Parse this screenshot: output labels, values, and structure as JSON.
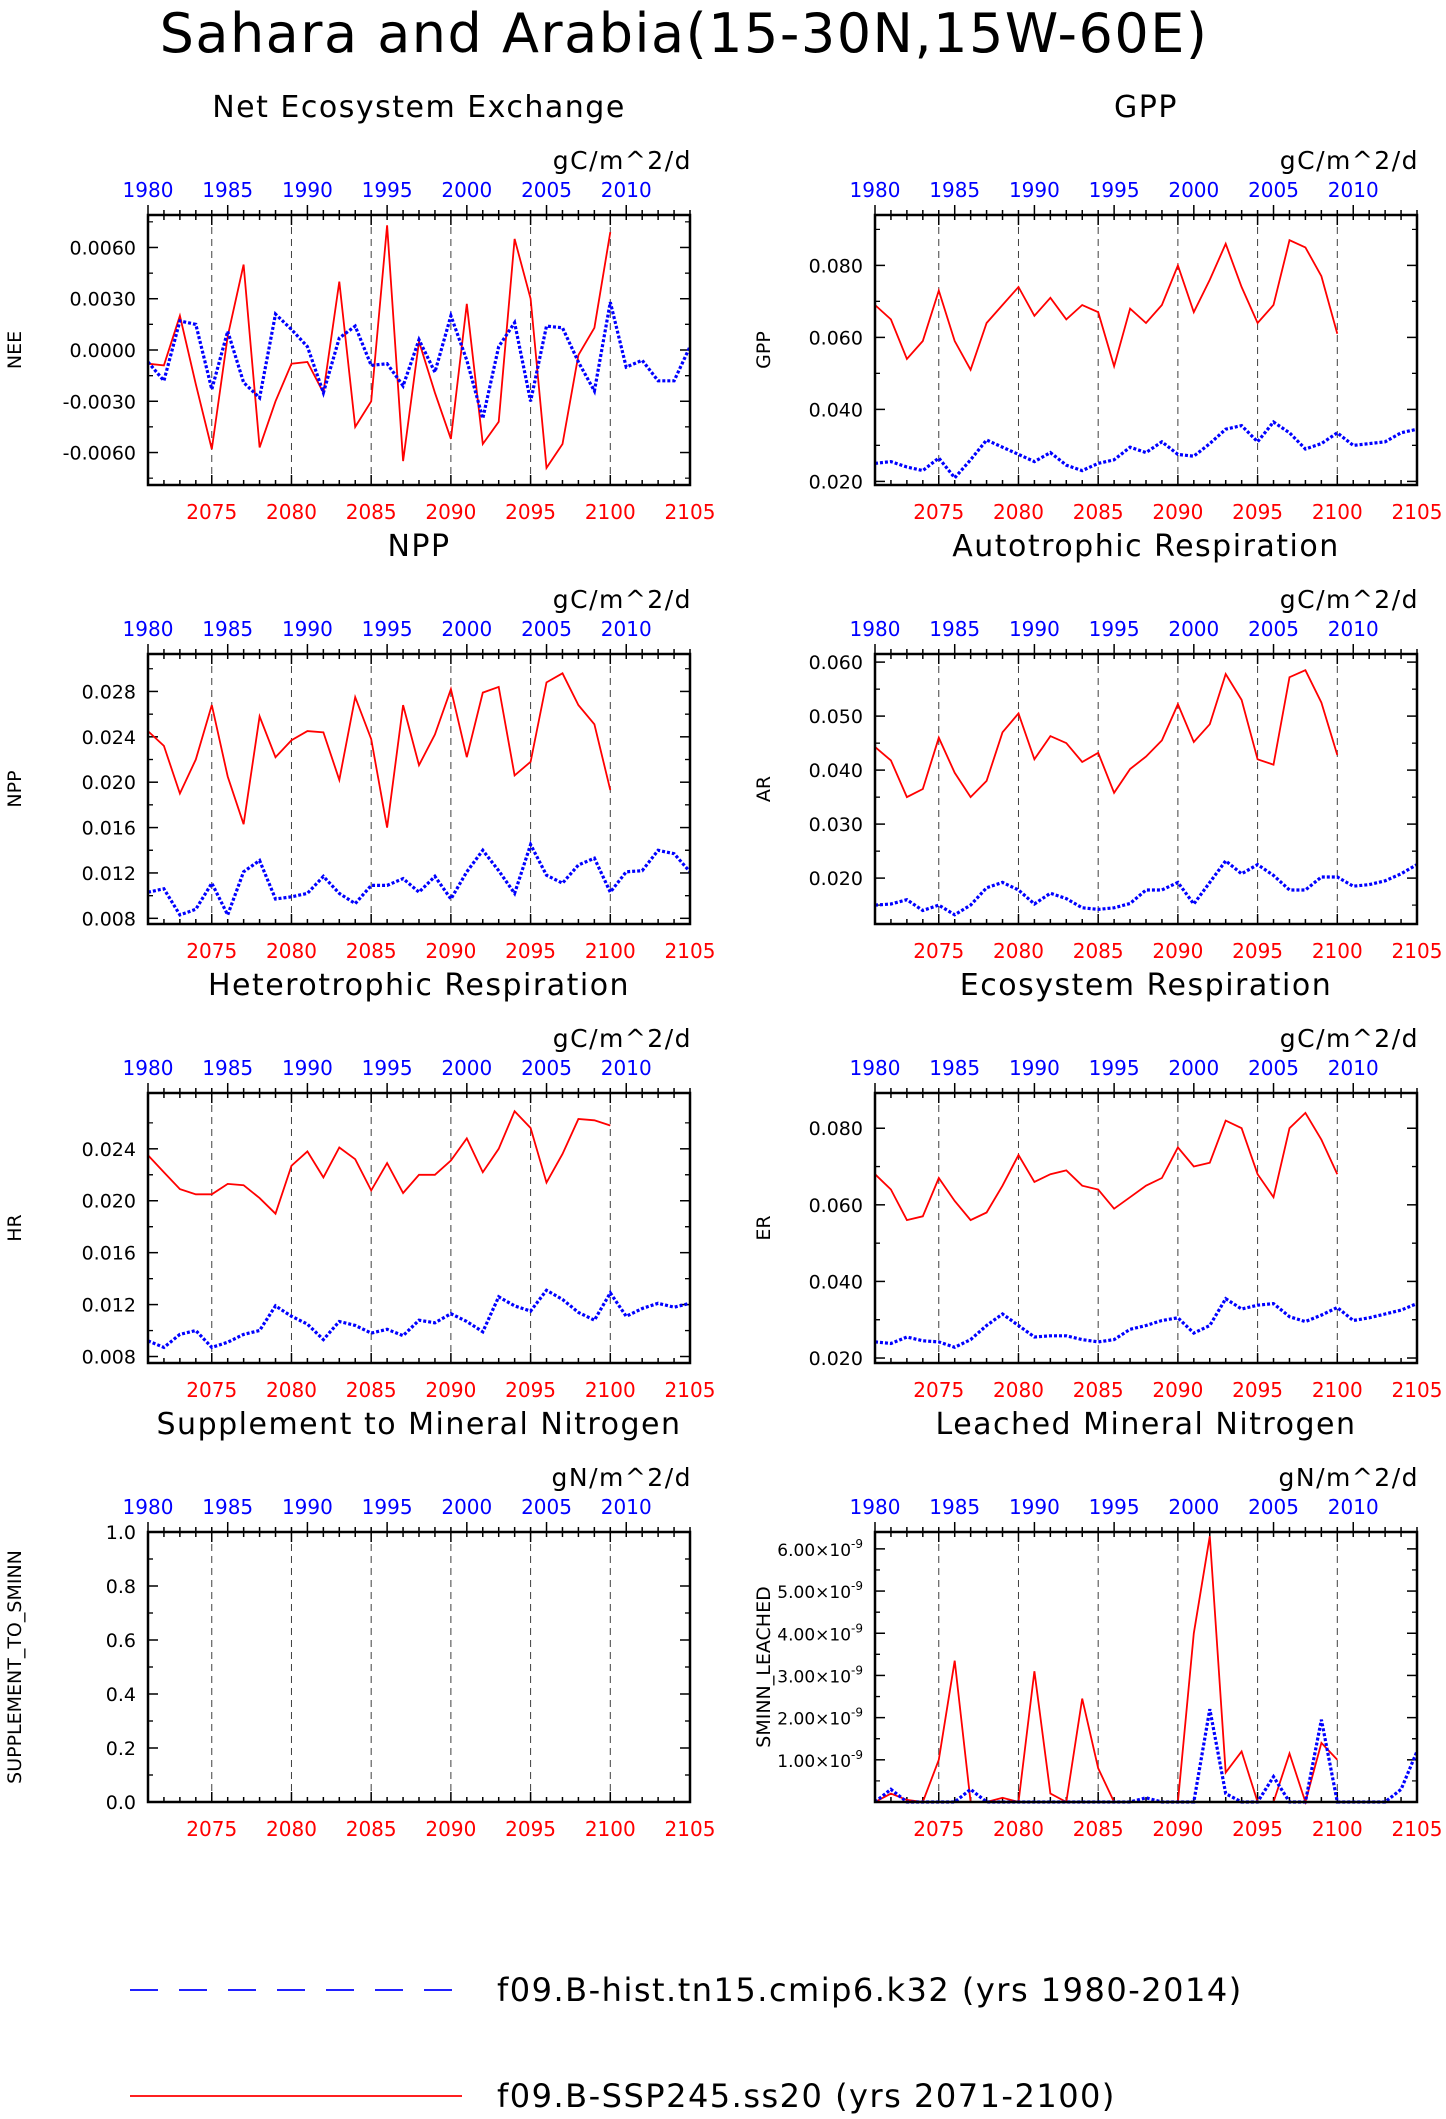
{
  "page_title": "Sahara and Arabia(15-30N,15W-60E)",
  "x_axes": {
    "top_ticks": [
      1980,
      1985,
      1990,
      1995,
      2000,
      2005,
      2010
    ],
    "top_range": [
      1980,
      2014
    ],
    "bottom_ticks": [
      2075,
      2080,
      2085,
      2090,
      2095,
      2100,
      2105
    ],
    "bottom_range": [
      2071,
      2105
    ],
    "top_color": "#0000ff",
    "bottom_color": "#ff0000",
    "dashed_gridlines_at_bottom_years": [
      2075,
      2080,
      2085,
      2090,
      2095,
      2100
    ]
  },
  "legend": {
    "items": [
      {
        "label": "f09.B-hist.tn15.cmip6.k32 (yrs 1980-2014)",
        "color": "#0000ff",
        "style": "dashed"
      },
      {
        "label": "f09.B-SSP245.ss20 (yrs 2071-2100)",
        "color": "#ff0000",
        "style": "solid"
      }
    ]
  },
  "chart_data": [
    {
      "type": "line",
      "title": "Net Ecosystem Exchange",
      "units": "gC/m^2/d",
      "ylabel": "NEE",
      "ylim": [
        -0.0079,
        0.0079
      ],
      "yticks": [
        {
          "v": 0.006,
          "label": "0.0060"
        },
        {
          "v": 0.003,
          "label": "0.0030"
        },
        {
          "v": 0.0,
          "label": "0.0000"
        },
        {
          "v": -0.003,
          "label": "-0.0030"
        },
        {
          "v": -0.006,
          "label": "-0.0060"
        }
      ],
      "series": [
        {
          "color": "#ff0000",
          "x_start": 2071,
          "values": [
            -0.0008,
            -0.0009,
            0.002,
            -0.002,
            -0.0058,
            0.0008,
            0.005,
            -0.0057,
            -0.003,
            -0.0008,
            -0.0007,
            -0.0025,
            0.004,
            -0.0045,
            -0.003,
            0.0073,
            -0.0065,
            0.0005,
            -0.0025,
            -0.0052,
            0.0027,
            -0.0055,
            -0.0042,
            0.0065,
            0.003,
            -0.0069,
            -0.0055,
            -0.0003,
            0.0013,
            0.0069
          ]
        },
        {
          "color": "#0000ff",
          "x_start": 1980,
          "dashed": true,
          "values": [
            -0.0007,
            -0.0018,
            0.0017,
            0.0015,
            -0.0023,
            0.0011,
            -0.0019,
            -0.0028,
            0.0021,
            0.0012,
            0.0002,
            -0.0025,
            0.0007,
            0.0014,
            -0.0009,
            -0.0008,
            -0.0021,
            0.0006,
            -0.0013,
            0.002,
            -0.0006,
            -0.004,
            0.0002,
            0.0016,
            -0.003,
            0.0014,
            0.0013,
            -0.0007,
            -0.0024,
            0.0028,
            -0.001,
            -0.0006,
            -0.0018,
            -0.0018,
            0.0002
          ]
        }
      ]
    },
    {
      "type": "line",
      "title": "GPP",
      "units": "gC/m^2/d",
      "ylabel": "GPP",
      "ylim": [
        0.019,
        0.094
      ],
      "yticks": [
        {
          "v": 0.08,
          "label": "0.080"
        },
        {
          "v": 0.06,
          "label": "0.060"
        },
        {
          "v": 0.04,
          "label": "0.040"
        },
        {
          "v": 0.02,
          "label": "0.020"
        }
      ],
      "series": [
        {
          "color": "#ff0000",
          "x_start": 2071,
          "values": [
            0.069,
            0.065,
            0.054,
            0.059,
            0.073,
            0.059,
            0.051,
            0.064,
            0.069,
            0.074,
            0.066,
            0.071,
            0.065,
            0.069,
            0.067,
            0.052,
            0.068,
            0.064,
            0.069,
            0.08,
            0.067,
            0.076,
            0.086,
            0.074,
            0.064,
            0.069,
            0.087,
            0.085,
            0.077,
            0.061
          ]
        },
        {
          "color": "#0000ff",
          "x_start": 1980,
          "dashed": true,
          "values": [
            0.025,
            0.0255,
            0.024,
            0.023,
            0.0265,
            0.021,
            0.026,
            0.0315,
            0.0295,
            0.0275,
            0.0255,
            0.028,
            0.0245,
            0.023,
            0.025,
            0.026,
            0.0295,
            0.028,
            0.031,
            0.0275,
            0.027,
            0.0305,
            0.0345,
            0.0355,
            0.031,
            0.0365,
            0.0335,
            0.029,
            0.0305,
            0.0335,
            0.03,
            0.0305,
            0.031,
            0.0335,
            0.0345
          ]
        }
      ]
    },
    {
      "type": "line",
      "title": "NPP",
      "units": "gC/m^2/d",
      "ylabel": "NPP",
      "ylim": [
        0.0075,
        0.0313
      ],
      "yticks": [
        {
          "v": 0.028,
          "label": "0.028"
        },
        {
          "v": 0.024,
          "label": "0.024"
        },
        {
          "v": 0.02,
          "label": "0.020"
        },
        {
          "v": 0.016,
          "label": "0.016"
        },
        {
          "v": 0.012,
          "label": "0.012"
        },
        {
          "v": 0.008,
          "label": "0.008"
        }
      ],
      "series": [
        {
          "color": "#ff0000",
          "x_start": 2071,
          "values": [
            0.0245,
            0.0232,
            0.019,
            0.022,
            0.0268,
            0.0205,
            0.0163,
            0.0258,
            0.0222,
            0.0237,
            0.0245,
            0.0244,
            0.0202,
            0.0275,
            0.0238,
            0.016,
            0.0268,
            0.0215,
            0.0242,
            0.0282,
            0.0222,
            0.0279,
            0.0284,
            0.0206,
            0.0218,
            0.0288,
            0.0296,
            0.0268,
            0.0251,
            0.0193
          ]
        },
        {
          "color": "#0000ff",
          "x_start": 1980,
          "dashed": true,
          "values": [
            0.0103,
            0.0106,
            0.0083,
            0.0088,
            0.0111,
            0.0083,
            0.0121,
            0.0131,
            0.0097,
            0.0099,
            0.0102,
            0.0117,
            0.0102,
            0.0093,
            0.0109,
            0.0109,
            0.0115,
            0.0103,
            0.0117,
            0.0097,
            0.0121,
            0.014,
            0.0122,
            0.0102,
            0.0145,
            0.0118,
            0.0111,
            0.0127,
            0.0133,
            0.0103,
            0.0121,
            0.0122,
            0.014,
            0.0137,
            0.0121
          ]
        }
      ]
    },
    {
      "type": "line",
      "title": "Autotrophic Respiration",
      "units": "gC/m^2/d",
      "ylabel": "AR",
      "ylim": [
        0.0115,
        0.0615
      ],
      "yticks": [
        {
          "v": 0.06,
          "label": "0.060"
        },
        {
          "v": 0.05,
          "label": "0.050"
        },
        {
          "v": 0.04,
          "label": "0.040"
        },
        {
          "v": 0.03,
          "label": "0.030"
        },
        {
          "v": 0.02,
          "label": "0.020"
        }
      ],
      "series": [
        {
          "color": "#ff0000",
          "x_start": 2071,
          "values": [
            0.0443,
            0.0418,
            0.035,
            0.0365,
            0.046,
            0.0395,
            0.035,
            0.038,
            0.047,
            0.0505,
            0.042,
            0.0463,
            0.045,
            0.0415,
            0.0432,
            0.0358,
            0.0402,
            0.0425,
            0.0455,
            0.0522,
            0.0452,
            0.0485,
            0.0578,
            0.053,
            0.042,
            0.041,
            0.0572,
            0.0585,
            0.0525,
            0.0428
          ]
        },
        {
          "color": "#0000ff",
          "x_start": 1980,
          "dashed": true,
          "values": [
            0.015,
            0.0152,
            0.016,
            0.014,
            0.015,
            0.0132,
            0.015,
            0.0182,
            0.0192,
            0.0178,
            0.0152,
            0.0172,
            0.0162,
            0.0145,
            0.0142,
            0.0145,
            0.0153,
            0.0178,
            0.0178,
            0.0192,
            0.0152,
            0.0192,
            0.0232,
            0.0208,
            0.0225,
            0.0205,
            0.0178,
            0.0178,
            0.0202,
            0.0202,
            0.0185,
            0.0188,
            0.0195,
            0.0208,
            0.0225
          ]
        }
      ]
    },
    {
      "type": "line",
      "title": "Heterotrophic Respiration",
      "units": "gC/m^2/d",
      "ylabel": "HR",
      "ylim": [
        0.0075,
        0.0283
      ],
      "yticks": [
        {
          "v": 0.024,
          "label": "0.024"
        },
        {
          "v": 0.02,
          "label": "0.020"
        },
        {
          "v": 0.016,
          "label": "0.016"
        },
        {
          "v": 0.012,
          "label": "0.012"
        },
        {
          "v": 0.008,
          "label": "0.008"
        }
      ],
      "series": [
        {
          "color": "#ff0000",
          "x_start": 2071,
          "values": [
            0.0235,
            0.0222,
            0.0209,
            0.0205,
            0.0205,
            0.0213,
            0.0212,
            0.0202,
            0.019,
            0.0227,
            0.0238,
            0.0218,
            0.0241,
            0.0232,
            0.0208,
            0.0229,
            0.0206,
            0.022,
            0.022,
            0.0231,
            0.0248,
            0.0222,
            0.024,
            0.0269,
            0.0256,
            0.0214,
            0.0236,
            0.0263,
            0.0262,
            0.0258
          ]
        },
        {
          "color": "#0000ff",
          "x_start": 1980,
          "dashed": true,
          "values": [
            0.0092,
            0.0087,
            0.0097,
            0.01,
            0.0087,
            0.0091,
            0.0097,
            0.01,
            0.0119,
            0.0111,
            0.0105,
            0.0093,
            0.0107,
            0.0104,
            0.0098,
            0.0101,
            0.0096,
            0.0108,
            0.0106,
            0.0113,
            0.0107,
            0.0099,
            0.0126,
            0.0119,
            0.0115,
            0.0131,
            0.0124,
            0.0114,
            0.0108,
            0.0129,
            0.0111,
            0.0117,
            0.0121,
            0.0118,
            0.0121
          ]
        }
      ]
    },
    {
      "type": "line",
      "title": "Ecosystem Respiration",
      "units": "gC/m^2/d",
      "ylabel": "ER",
      "ylim": [
        0.0187,
        0.0892
      ],
      "yticks": [
        {
          "v": 0.08,
          "label": "0.080"
        },
        {
          "v": 0.06,
          "label": "0.060"
        },
        {
          "v": 0.04,
          "label": "0.040"
        },
        {
          "v": 0.02,
          "label": "0.020"
        }
      ],
      "series": [
        {
          "color": "#ff0000",
          "x_start": 2071,
          "values": [
            0.068,
            0.064,
            0.056,
            0.057,
            0.067,
            0.061,
            0.056,
            0.058,
            0.065,
            0.073,
            0.066,
            0.068,
            0.069,
            0.065,
            0.064,
            0.059,
            0.062,
            0.065,
            0.067,
            0.075,
            0.07,
            0.071,
            0.082,
            0.08,
            0.068,
            0.062,
            0.08,
            0.084,
            0.077,
            0.068
          ]
        },
        {
          "color": "#0000ff",
          "x_start": 1980,
          "dashed": true,
          "values": [
            0.0242,
            0.0238,
            0.0255,
            0.0245,
            0.0242,
            0.0228,
            0.0248,
            0.0285,
            0.0315,
            0.0285,
            0.0255,
            0.0258,
            0.0258,
            0.0248,
            0.0242,
            0.0248,
            0.0275,
            0.0285,
            0.0298,
            0.0305,
            0.0265,
            0.0285,
            0.0355,
            0.0328,
            0.0338,
            0.0342,
            0.0308,
            0.0295,
            0.0312,
            0.0332,
            0.0298,
            0.0305,
            0.0315,
            0.0325,
            0.0342
          ]
        }
      ]
    },
    {
      "type": "line",
      "title": "Supplement to Mineral Nitrogen",
      "units": "gN/m^2/d",
      "ylabel": "SUPPLEMENT_TO_SMINN",
      "ylim": [
        0,
        1
      ],
      "yticks": [
        {
          "v": 1.0,
          "label": "1.0"
        },
        {
          "v": 0.8,
          "label": "0.8"
        },
        {
          "v": 0.6,
          "label": "0.6"
        },
        {
          "v": 0.4,
          "label": "0.4"
        },
        {
          "v": 0.2,
          "label": "0.2"
        },
        {
          "v": 0.0,
          "label": "0.0"
        }
      ],
      "series": []
    },
    {
      "type": "line",
      "title": "Leached Mineral Nitrogen",
      "units": "gN/m^2/d",
      "ylabel": "SMINN_LEACHED",
      "ylim": [
        0,
        6.4e-09
      ],
      "yticks": [
        {
          "v": 6e-09,
          "label": "6.00×10",
          "exp": "-9"
        },
        {
          "v": 5e-09,
          "label": "5.00×10",
          "exp": "-9"
        },
        {
          "v": 4e-09,
          "label": "4.00×10",
          "exp": "-9"
        },
        {
          "v": 3e-09,
          "label": "3.00×10",
          "exp": "-9"
        },
        {
          "v": 2e-09,
          "label": "2.00×10",
          "exp": "-9"
        },
        {
          "v": 1e-09,
          "label": "1.00×10",
          "exp": "-9"
        }
      ],
      "series": [
        {
          "color": "#ff0000",
          "x_start": 2071,
          "values": [
            0.0,
            2e-10,
            5e-11,
            0.0,
            1e-09,
            3.35e-09,
            0.0,
            0.0,
            1e-10,
            0.0,
            3.1e-09,
            2e-10,
            0.0,
            2.45e-09,
            8e-10,
            0.0,
            0.0,
            0.0,
            0.0,
            0.0,
            4e-09,
            6.3e-09,
            7e-10,
            1.2e-09,
            0.0,
            0.0,
            1.15e-09,
            0.0,
            1.4e-09,
            1e-09
          ]
        },
        {
          "color": "#0000ff",
          "x_start": 1980,
          "dashed": true,
          "values": [
            0.0,
            3e-10,
            0.0,
            0.0,
            0.0,
            0.0,
            3e-10,
            0.0,
            0.0,
            0.0,
            0.0,
            0.0,
            0.0,
            0.0,
            0.0,
            0.0,
            0.0,
            1e-10,
            0.0,
            0.0,
            0.0,
            2.2e-09,
            2e-10,
            0.0,
            0.0,
            6e-10,
            0.0,
            0.0,
            1.95e-09,
            0.0,
            0.0,
            0.0,
            0.0,
            3e-10,
            1.2e-09
          ]
        }
      ]
    }
  ]
}
